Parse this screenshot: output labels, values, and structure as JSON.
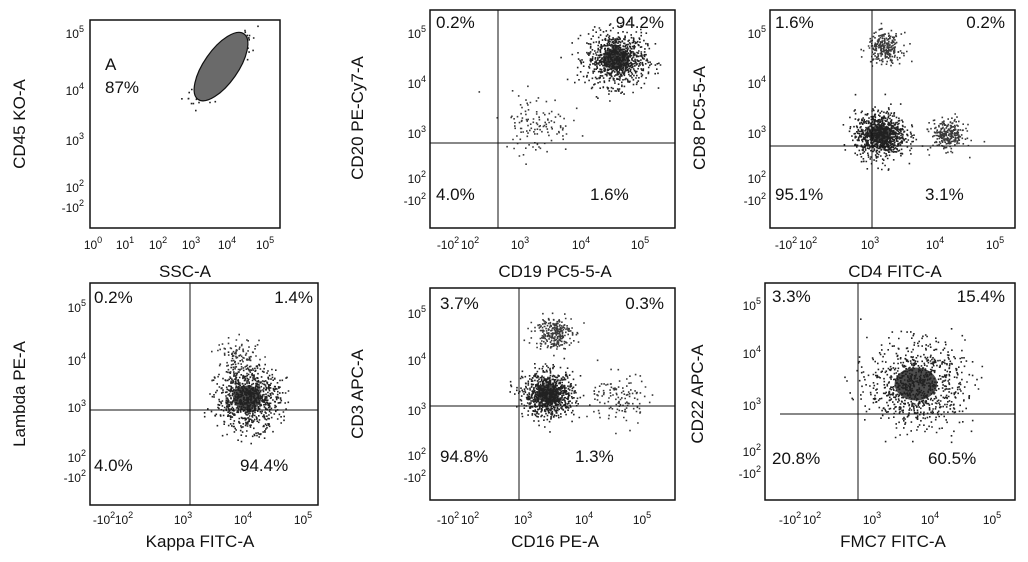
{
  "chart_data": [
    {
      "type": "scatter",
      "xlabel": "SSC-A",
      "ylabel": "CD45 KO-A",
      "x_scale": "log",
      "y_scale": "log",
      "x_ticks": [
        {
          "label": "10",
          "exp": "0"
        },
        {
          "label": "10",
          "exp": "1"
        },
        {
          "label": "10",
          "exp": "2"
        },
        {
          "label": "10",
          "exp": "3"
        },
        {
          "label": "10",
          "exp": "4"
        },
        {
          "label": "10",
          "exp": "5"
        }
      ],
      "y_ticks": [
        {
          "label": "-10",
          "exp": "2"
        },
        {
          "label": "10",
          "exp": "2"
        },
        {
          "label": "10",
          "exp": "3"
        },
        {
          "label": "10",
          "exp": "4"
        },
        {
          "label": "10",
          "exp": "5"
        }
      ],
      "gate": {
        "name": "A",
        "percent": "87%"
      },
      "populations": [
        {
          "x_log": 3.5,
          "y_log": 4.0,
          "spread": 0.35,
          "density": "high",
          "elongated": true
        }
      ]
    },
    {
      "type": "scatter",
      "xlabel": "CD19 PC5-5-A",
      "ylabel": "CD20 PE-Cy7-A",
      "x_scale": "biexponential",
      "y_scale": "biexponential",
      "x_ticks": [
        {
          "label": "-10",
          "exp": "2"
        },
        {
          "label": "10",
          "exp": "2"
        },
        {
          "label": "10",
          "exp": "3"
        },
        {
          "label": "10",
          "exp": "4"
        },
        {
          "label": "10",
          "exp": "5"
        }
      ],
      "y_ticks": [
        {
          "label": "-10",
          "exp": "2"
        },
        {
          "label": "10",
          "exp": "2"
        },
        {
          "label": "10",
          "exp": "3"
        },
        {
          "label": "10",
          "exp": "4"
        },
        {
          "label": "10",
          "exp": "5"
        }
      ],
      "quadrants": {
        "upper_left": "0.2%",
        "upper_right": "94.2%",
        "lower_left": "4.0%",
        "lower_right": "1.6%"
      },
      "populations": [
        {
          "x_log": 3.9,
          "y_log": 4.0,
          "spread": 0.35,
          "density": "high"
        },
        {
          "x_log": 2.0,
          "y_log": 2.3,
          "spread": 0.4,
          "density": "low"
        }
      ]
    },
    {
      "type": "scatter",
      "xlabel": "CD4 FITC-A",
      "ylabel": "CD8 PC5-5-A",
      "x_scale": "biexponential",
      "y_scale": "biexponential",
      "x_ticks": [
        {
          "label": "-10",
          "exp": "2"
        },
        {
          "label": "10",
          "exp": "2"
        },
        {
          "label": "10",
          "exp": "3"
        },
        {
          "label": "10",
          "exp": "4"
        },
        {
          "label": "10",
          "exp": "5"
        }
      ],
      "y_ticks": [
        {
          "label": "-10",
          "exp": "2"
        },
        {
          "label": "10",
          "exp": "2"
        },
        {
          "label": "10",
          "exp": "3"
        },
        {
          "label": "10",
          "exp": "4"
        },
        {
          "label": "10",
          "exp": "5"
        }
      ],
      "quadrants": {
        "upper_left": "1.6%",
        "upper_right": "0.2%",
        "lower_left": "95.1%",
        "lower_right": "3.1%"
      },
      "populations": [
        {
          "x_log": 2.1,
          "y_log": 2.0,
          "spread": 0.3,
          "density": "high"
        },
        {
          "x_log": 2.2,
          "y_log": 4.3,
          "spread": 0.2,
          "density": "medium"
        },
        {
          "x_log": 3.7,
          "y_log": 2.0,
          "spread": 0.2,
          "density": "medium"
        }
      ]
    },
    {
      "type": "scatter",
      "xlabel": "Kappa FITC-A",
      "ylabel": "Lambda PE-A",
      "x_scale": "biexponential",
      "y_scale": "biexponential",
      "x_ticks": [
        {
          "label": "-10",
          "exp": "2"
        },
        {
          "label": "10",
          "exp": "2"
        },
        {
          "label": "10",
          "exp": "3"
        },
        {
          "label": "10",
          "exp": "4"
        },
        {
          "label": "10",
          "exp": "5"
        }
      ],
      "y_ticks": [
        {
          "label": "-10",
          "exp": "2"
        },
        {
          "label": "10",
          "exp": "2"
        },
        {
          "label": "10",
          "exp": "3"
        },
        {
          "label": "10",
          "exp": "4"
        },
        {
          "label": "10",
          "exp": "5"
        }
      ],
      "quadrants": {
        "upper_left": "0.2%",
        "upper_right": "1.4%",
        "lower_left": "4.0%",
        "lower_right": "94.4%"
      },
      "populations": [
        {
          "x_log": 3.5,
          "y_log": 2.3,
          "spread": 0.4,
          "density": "high"
        },
        {
          "x_log": 3.3,
          "y_log": 3.3,
          "spread": 0.3,
          "density": "low"
        }
      ]
    },
    {
      "type": "scatter",
      "xlabel": "CD16 PE-A",
      "ylabel": "CD3 APC-A",
      "x_scale": "biexponential",
      "y_scale": "biexponential",
      "x_ticks": [
        {
          "label": "-10",
          "exp": "2"
        },
        {
          "label": "10",
          "exp": "2"
        },
        {
          "label": "10",
          "exp": "3"
        },
        {
          "label": "10",
          "exp": "4"
        },
        {
          "label": "10",
          "exp": "5"
        }
      ],
      "y_ticks": [
        {
          "label": "-10",
          "exp": "2"
        },
        {
          "label": "10",
          "exp": "2"
        },
        {
          "label": "10",
          "exp": "3"
        },
        {
          "label": "10",
          "exp": "4"
        },
        {
          "label": "10",
          "exp": "5"
        }
      ],
      "quadrants": {
        "upper_left": "3.7%",
        "upper_right": "0.3%",
        "lower_left": "94.8%",
        "lower_right": "1.3%"
      },
      "populations": [
        {
          "x_log": 2.3,
          "y_log": 2.4,
          "spread": 0.3,
          "density": "high"
        },
        {
          "x_log": 2.4,
          "y_log": 4.1,
          "spread": 0.22,
          "density": "medium"
        },
        {
          "x_log": 4.0,
          "y_log": 2.3,
          "spread": 0.35,
          "density": "low"
        }
      ]
    },
    {
      "type": "scatter",
      "xlabel": "FMC7 FITC-A",
      "ylabel": "CD22 APC-A",
      "x_scale": "biexponential",
      "y_scale": "biexponential",
      "x_ticks": [
        {
          "label": "-10",
          "exp": "2"
        },
        {
          "label": "10",
          "exp": "2"
        },
        {
          "label": "10",
          "exp": "3"
        },
        {
          "label": "10",
          "exp": "4"
        },
        {
          "label": "10",
          "exp": "5"
        }
      ],
      "y_ticks": [
        {
          "label": "-10",
          "exp": "2"
        },
        {
          "label": "10",
          "exp": "2"
        },
        {
          "label": "10",
          "exp": "3"
        },
        {
          "label": "10",
          "exp": "4"
        },
        {
          "label": "10",
          "exp": "5"
        }
      ],
      "quadrants": {
        "upper_left": "3.3%",
        "upper_right": "15.4%",
        "lower_left": "20.8%",
        "lower_right": "60.5%"
      },
      "populations": [
        {
          "x_log": 3.0,
          "y_log": 2.6,
          "spread": 0.55,
          "density": "high"
        }
      ]
    }
  ],
  "colors": {
    "dots": "#3a3a3a",
    "dense": "#222222",
    "gate_fill": "#6a6a6a",
    "line": "#111111"
  }
}
